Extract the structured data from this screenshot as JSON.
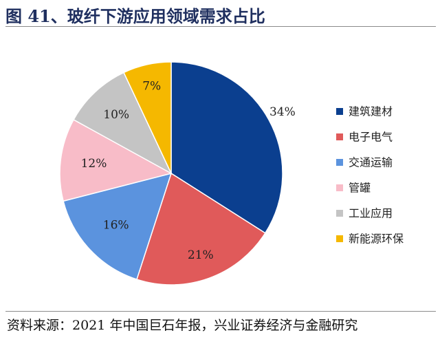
{
  "header": {
    "title": "图 41、玻纤下游应用领域需求占比"
  },
  "chart_data": {
    "type": "pie",
    "start_angle_deg": 0,
    "direction": "clockwise",
    "legend_position": "right",
    "slices": [
      {
        "name": "建筑建材",
        "value": 34,
        "label": "34%",
        "color": "#0b3f8f"
      },
      {
        "name": "电子电气",
        "value": 21,
        "label": "21%",
        "color": "#e05a5a"
      },
      {
        "name": "交通运输",
        "value": 16,
        "label": "16%",
        "color": "#5b93de"
      },
      {
        "name": "管罐",
        "value": 12,
        "label": "12%",
        "color": "#f8bcc8"
      },
      {
        "name": "工业应用",
        "value": 10,
        "label": "10%",
        "color": "#c4c4c4"
      },
      {
        "name": "新能源环保",
        "value": 7,
        "label": "7%",
        "color": "#f5b800"
      }
    ]
  },
  "footer": {
    "source": "资料来源：2021 年中国巨石年报，兴业证券经济与金融研究"
  }
}
